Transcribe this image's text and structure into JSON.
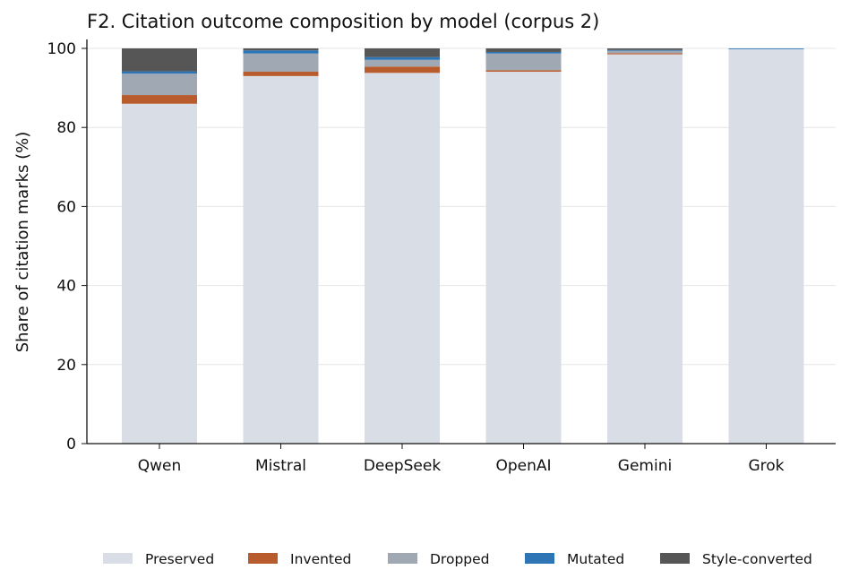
{
  "chart_data": {
    "type": "bar",
    "stacked": true,
    "title": "F2. Citation outcome composition by model (corpus 2)",
    "xlabel": "",
    "ylabel": "Share of citation marks (%)",
    "ylim": [
      0,
      100
    ],
    "yticks": [
      "0",
      "20",
      "40",
      "60",
      "80",
      "100"
    ],
    "grid": "horizontal",
    "legend_position": "bottom",
    "categories": [
      "Qwen",
      "Mistral",
      "DeepSeek",
      "OpenAI",
      "Gemini",
      "Grok"
    ],
    "series": [
      {
        "name": "Preserved",
        "color": "#d9dee6",
        "values": [
          86.0,
          93.0,
          93.8,
          94.1,
          98.5,
          99.8
        ]
      },
      {
        "name": "Invented",
        "color": "#b85c2e",
        "values": [
          2.2,
          1.1,
          1.6,
          0.4,
          0.3,
          0.0
        ]
      },
      {
        "name": "Dropped",
        "color": "#a0a8b3",
        "values": [
          5.4,
          4.6,
          1.7,
          4.2,
          0.6,
          0.0
        ]
      },
      {
        "name": "Mutated",
        "color": "#2e75b6",
        "values": [
          0.6,
          0.8,
          0.7,
          0.4,
          0.2,
          0.2
        ]
      },
      {
        "name": "Style-converted",
        "color": "#565656",
        "values": [
          5.8,
          0.5,
          2.2,
          0.9,
          0.4,
          0.0
        ]
      }
    ]
  }
}
